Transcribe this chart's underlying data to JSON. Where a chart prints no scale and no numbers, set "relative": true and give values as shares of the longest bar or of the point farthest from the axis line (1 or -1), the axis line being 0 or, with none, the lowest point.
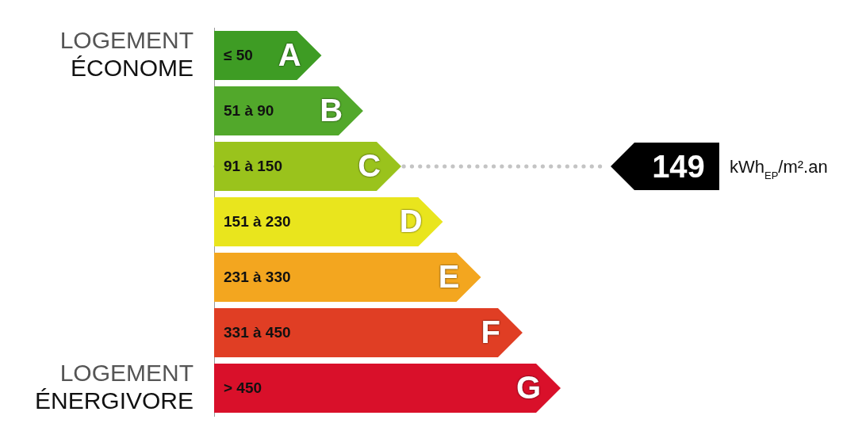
{
  "chart_data": {
    "type": "bar",
    "orientation": "horizontal",
    "relative": true,
    "categories": [
      "A",
      "B",
      "C",
      "D",
      "E",
      "F",
      "G"
    ],
    "values": [
      0.31,
      0.43,
      0.54,
      0.66,
      0.77,
      0.89,
      1
    ],
    "colors": [
      "#3e9c24",
      "#52a82b",
      "#9ac31c",
      "#e9e51d",
      "#f3a61f",
      "#e03e24",
      "#d9102a"
    ],
    "ref_lines": [
      {
        "axis": "y",
        "value": "C",
        "label": "149 kWh$_{EP}$/m².an",
        "color": "#c4c4c4",
        "line_style": "dotted"
      }
    ],
    "annotations": [
      "≤ 50",
      "51 à 90",
      "91 à 150",
      "151 à 230",
      "231 à 330",
      "331 à 450",
      "> 450",
      "LOGEMENT\nÉCONOME",
      "LOGEMENT\nÉNERGIVORE"
    ]
  }
}
